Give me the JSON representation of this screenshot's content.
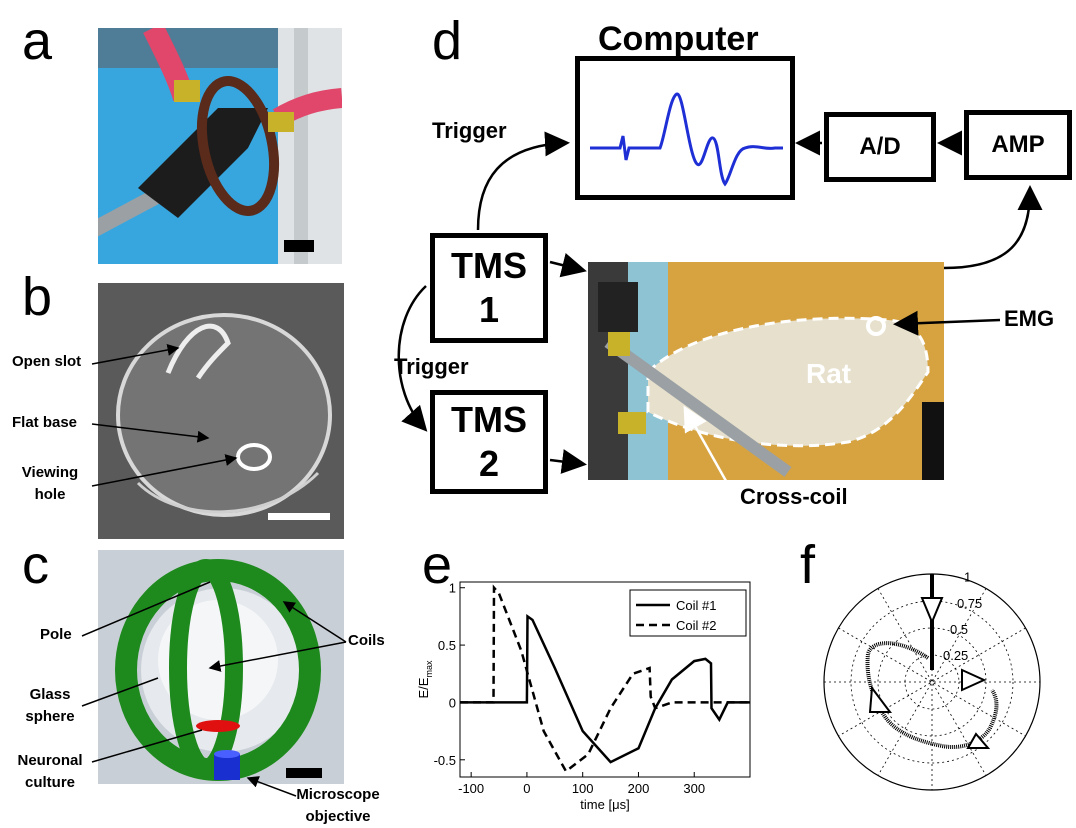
{
  "panels": {
    "a": "a",
    "b": "b",
    "c": "c",
    "d": "d",
    "e": "e",
    "f": "f"
  },
  "panel_b": {
    "open_slot": "Open slot",
    "flat_base": "Flat base",
    "viewing_hole_1": "Viewing",
    "viewing_hole_2": "hole"
  },
  "panel_c": {
    "pole": "Pole",
    "coils": "Coils",
    "glass_1": "Glass",
    "glass_2": "sphere",
    "neuronal_1": "Neuronal",
    "neuronal_2": "culture",
    "micro_1": "Microscope",
    "micro_2": "objective"
  },
  "panel_d": {
    "computer": "Computer",
    "trigger_top": "Trigger",
    "trigger_mid": "Trigger",
    "ad": "A/D",
    "amp": "AMP",
    "tms1_a": "TMS",
    "tms1_b": "1",
    "tms2_a": "TMS",
    "tms2_b": "2",
    "emg": "EMG",
    "rat": "Rat",
    "cross_coil": "Cross-coil"
  },
  "colors": {
    "trace_blue": "#1f2fd6",
    "sky_blue": "#37a6df",
    "coil_green": "#1e8a1e",
    "culture_red": "#e01010",
    "objective_blue": "#1a2fd0"
  },
  "chart_data": [
    {
      "type": "line",
      "ylabel_main": "E/E",
      "ylabel_sub": "max",
      "xlabel": "time [μs]",
      "xticks": [
        "-100",
        "0",
        "100",
        "200",
        "300"
      ],
      "yticks": [
        "1",
        "0.5",
        "0",
        "-0.5"
      ],
      "xlim": [
        -120,
        400
      ],
      "ylim": [
        -0.65,
        1.05
      ],
      "legend": "top-right",
      "series": [
        {
          "name": "Coil #1",
          "style": "solid",
          "x": [
            -120,
            0,
            1,
            10,
            50,
            100,
            150,
            200,
            230,
            260,
            300,
            320,
            330,
            331,
            345,
            360,
            400
          ],
          "y": [
            0,
            0,
            0.75,
            0.72,
            0.3,
            -0.25,
            -0.52,
            -0.4,
            -0.05,
            0.2,
            0.36,
            0.38,
            0.34,
            -0.05,
            -0.15,
            0,
            0
          ]
        },
        {
          "name": "Coil #2",
          "style": "dashed",
          "x": [
            -120,
            -60,
            -59,
            -50,
            -10,
            30,
            70,
            110,
            150,
            190,
            220,
            222,
            230,
            260,
            300,
            400
          ],
          "y": [
            0,
            0,
            1.0,
            0.95,
            0.45,
            -0.25,
            -0.6,
            -0.45,
            -0.05,
            0.25,
            0.3,
            0.05,
            -0.05,
            0,
            0,
            0
          ]
        }
      ]
    },
    {
      "type": "scatter",
      "polar": true,
      "radial_ticks": [
        "1",
        "0.75",
        "0.5",
        "0.25"
      ],
      "rlim": [
        0,
        1
      ]
    }
  ]
}
